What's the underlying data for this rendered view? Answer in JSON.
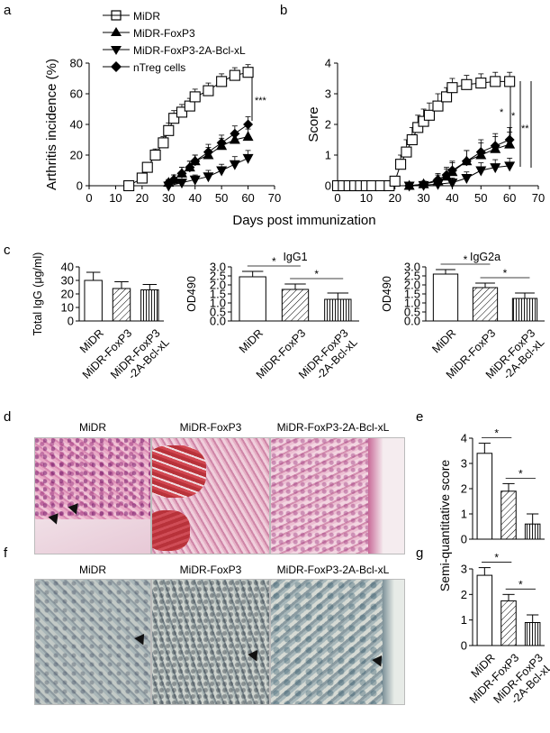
{
  "panel_labels": {
    "a": "a",
    "b": "b",
    "c": "c",
    "d": "d",
    "e": "e",
    "f": "f",
    "g": "g"
  },
  "shared_xlabel": "Days post immunization",
  "legend": [
    "MiDR",
    "MiDR-FoxP3",
    "MiDR-FoxP3-2A-Bcl-xL",
    "nTreg cells"
  ],
  "sig": {
    "a": "***",
    "b1": "*",
    "b2": "*",
    "b3": "**",
    "star": "*"
  },
  "images": {
    "d_titles": [
      "MiDR",
      "MiDR-FoxP3",
      "MiDR-FoxP3-2A-Bcl-xL"
    ],
    "f_titles": [
      "MiDR",
      "MiDR-FoxP3",
      "MiDR-FoxP3-2A-Bcl-xL"
    ]
  },
  "shared_ylabel_eg": "Semi-quantitative score",
  "chart_data": [
    {
      "id": "a",
      "type": "line",
      "xlabel": "Days post immunization",
      "ylabel": "Arthritis incidence (%)",
      "xlim": [
        0,
        70
      ],
      "ylim": [
        0,
        80
      ],
      "xticks": [
        0,
        10,
        20,
        30,
        40,
        50,
        60,
        70
      ],
      "yticks": [
        0,
        20,
        40,
        60,
        80
      ],
      "series": [
        {
          "name": "MiDR",
          "marker": "square-open",
          "x": [
            15,
            20,
            22,
            25,
            28,
            30,
            32,
            35,
            38,
            40,
            45,
            50,
            55,
            60
          ],
          "y": [
            0,
            5,
            12,
            20,
            28,
            36,
            44,
            48,
            52,
            58,
            62,
            68,
            72,
            74
          ],
          "err": [
            0,
            2,
            3,
            4,
            4,
            5,
            5,
            5,
            5,
            5,
            5,
            5,
            5,
            5
          ]
        },
        {
          "name": "MiDR-FoxP3",
          "marker": "triangle-up",
          "x": [
            30,
            32,
            35,
            38,
            40,
            45,
            50,
            55,
            60
          ],
          "y": [
            2,
            4,
            8,
            12,
            16,
            20,
            26,
            30,
            32
          ],
          "err": [
            2,
            3,
            4,
            4,
            4,
            5,
            5,
            5,
            5
          ]
        },
        {
          "name": "MiDR-FoxP3-2A-Bcl-xL",
          "marker": "triangle-down",
          "x": [
            30,
            35,
            40,
            45,
            50,
            55,
            60
          ],
          "y": [
            0,
            2,
            4,
            6,
            10,
            14,
            18
          ],
          "err": [
            1,
            2,
            3,
            4,
            4,
            5,
            5
          ]
        },
        {
          "name": "nTreg cells",
          "marker": "diamond",
          "x": [
            30,
            32,
            35,
            38,
            40,
            45,
            50,
            55,
            60
          ],
          "y": [
            2,
            4,
            8,
            12,
            16,
            22,
            28,
            34,
            40
          ],
          "err": [
            2,
            3,
            4,
            4,
            4,
            5,
            5,
            5,
            5
          ]
        }
      ]
    },
    {
      "id": "b",
      "type": "line",
      "xlabel": "Days post immunization",
      "ylabel": "Score",
      "xlim": [
        0,
        70
      ],
      "ylim": [
        0,
        4
      ],
      "xticks": [
        0,
        10,
        20,
        30,
        40,
        50,
        60,
        70
      ],
      "yticks": [
        0,
        1,
        2,
        3,
        4
      ],
      "series": [
        {
          "name": "MiDR",
          "marker": "square-open",
          "x": [
            0,
            2,
            4,
            6,
            8,
            10,
            12,
            15,
            18,
            20,
            22,
            24,
            26,
            28,
            30,
            32,
            35,
            38,
            40,
            45,
            50,
            55,
            60
          ],
          "y": [
            0,
            0,
            0,
            0,
            0,
            0,
            0,
            0,
            0,
            0.15,
            0.7,
            1.1,
            1.5,
            1.9,
            2.1,
            2.3,
            2.6,
            2.9,
            3.2,
            3.3,
            3.35,
            3.4,
            3.4
          ],
          "err": [
            0,
            0,
            0,
            0,
            0,
            0,
            0,
            0,
            0,
            0.1,
            0.3,
            0.4,
            0.4,
            0.4,
            0.4,
            0.4,
            0.4,
            0.3,
            0.3,
            0.3,
            0.3,
            0.3,
            0.3
          ]
        },
        {
          "name": "MiDR-FoxP3",
          "marker": "triangle-up",
          "x": [
            25,
            30,
            35,
            38,
            40,
            45,
            50,
            55,
            60
          ],
          "y": [
            0,
            0.05,
            0.15,
            0.3,
            0.45,
            0.8,
            1.0,
            1.2,
            1.35
          ],
          "err": [
            0,
            0.1,
            0.2,
            0.25,
            0.3,
            0.35,
            0.4,
            0.4,
            0.4
          ]
        },
        {
          "name": "MiDR-FoxP3-2A-Bcl-xL",
          "marker": "triangle-down",
          "x": [
            25,
            30,
            35,
            40,
            45,
            50,
            55,
            60
          ],
          "y": [
            0,
            0.02,
            0.05,
            0.1,
            0.25,
            0.5,
            0.6,
            0.65
          ],
          "err": [
            0,
            0.05,
            0.1,
            0.15,
            0.2,
            0.25,
            0.25,
            0.25
          ]
        },
        {
          "name": "nTreg cells",
          "marker": "diamond",
          "x": [
            25,
            30,
            35,
            38,
            40,
            45,
            50,
            55,
            60
          ],
          "y": [
            0,
            0.05,
            0.2,
            0.35,
            0.5,
            0.8,
            1.1,
            1.3,
            1.5
          ],
          "err": [
            0,
            0.1,
            0.2,
            0.25,
            0.3,
            0.35,
            0.4,
            0.4,
            0.4
          ]
        }
      ]
    },
    {
      "id": "c1",
      "type": "bar",
      "title": "",
      "ylabel": "Total IgG (μg/ml)",
      "ylim": [
        0,
        40
      ],
      "yticks": [
        0,
        10,
        20,
        30,
        40
      ],
      "categories": [
        "MiDR",
        "MiDR-FoxP3",
        "MiDR-FoxP3 -2A-Bcl-xL"
      ],
      "values": [
        30,
        24,
        23
      ],
      "err": [
        6,
        5,
        4
      ],
      "sig": []
    },
    {
      "id": "c2",
      "type": "bar",
      "title": "IgG1",
      "ylabel": "OD490",
      "ylim": [
        0,
        3
      ],
      "yticks": [
        0,
        0.5,
        1.0,
        1.5,
        2.0,
        2.5,
        3.0
      ],
      "categories": [
        "MiDR",
        "MiDR-FoxP3",
        "MiDR-FoxP3 -2A-Bcl-xL"
      ],
      "values": [
        2.45,
        1.75,
        1.2
      ],
      "err": [
        0.3,
        0.3,
        0.35
      ],
      "sig": [
        [
          0,
          1
        ],
        [
          1,
          2
        ]
      ]
    },
    {
      "id": "c3",
      "type": "bar",
      "title": "IgG2a",
      "ylabel": "OD490",
      "ylim": [
        0,
        3
      ],
      "yticks": [
        0,
        0.5,
        1.0,
        1.5,
        2.0,
        2.5,
        3.0
      ],
      "categories": [
        "MiDR",
        "MiDR-FoxP3",
        "MiDR-FoxP3 -2A-Bcl-xL"
      ],
      "values": [
        2.6,
        1.85,
        1.25
      ],
      "err": [
        0.25,
        0.25,
        0.3
      ],
      "sig": [
        [
          0,
          1
        ],
        [
          1,
          2
        ]
      ]
    },
    {
      "id": "e",
      "type": "bar",
      "title": "",
      "ylabel": "",
      "ylim": [
        0,
        4
      ],
      "yticks": [
        0,
        1,
        2,
        3,
        4
      ],
      "categories": [
        "",
        "",
        ""
      ],
      "values": [
        3.4,
        1.9,
        0.6
      ],
      "err": [
        0.4,
        0.3,
        0.4
      ],
      "sig": [
        [
          0,
          1
        ],
        [
          1,
          2
        ]
      ]
    },
    {
      "id": "g",
      "type": "bar",
      "title": "",
      "ylabel": "",
      "ylim": [
        0,
        3
      ],
      "yticks": [
        0,
        1,
        2,
        3
      ],
      "categories": [
        "MiDR",
        "MiDR-FoxP3",
        "MiDR-FoxP3 -2A-Bcl-xL"
      ],
      "values": [
        2.75,
        1.75,
        0.9
      ],
      "err": [
        0.3,
        0.25,
        0.3
      ],
      "sig": [
        [
          0,
          1
        ],
        [
          1,
          2
        ]
      ]
    }
  ]
}
